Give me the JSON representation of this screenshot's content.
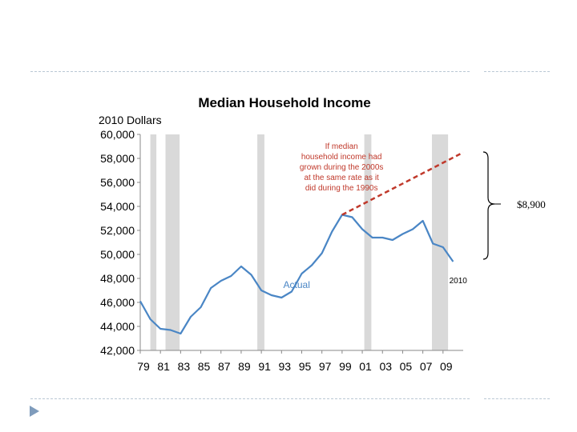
{
  "chart_data": {
    "type": "line",
    "title": "Median Household Income",
    "ylabel": "2010 Dollars",
    "xlabel": "",
    "ylim": [
      42000,
      60000
    ],
    "yticks": [
      42000,
      44000,
      46000,
      48000,
      50000,
      52000,
      54000,
      56000,
      58000,
      60000
    ],
    "ytick_labels": [
      "42,000",
      "44,000",
      "46,000",
      "48,000",
      "50,000",
      "52,000",
      "54,000",
      "56,000",
      "58,000",
      "60,000"
    ],
    "xlim": [
      1979,
      2011
    ],
    "xticks": [
      1979,
      1981,
      1983,
      1985,
      1987,
      1989,
      1991,
      1993,
      1995,
      1997,
      1999,
      2001,
      2003,
      2005,
      2007,
      2009
    ],
    "xtick_labels": [
      "79",
      "81",
      "83",
      "85",
      "87",
      "89",
      "91",
      "93",
      "95",
      "97",
      "99",
      "01",
      "03",
      "05",
      "07",
      "09"
    ],
    "grid": false,
    "series": [
      {
        "name": "Actual",
        "color": "#4a86c5",
        "style": "solid",
        "x": [
          1979,
          1980,
          1981,
          1982,
          1983,
          1984,
          1985,
          1986,
          1987,
          1988,
          1989,
          1990,
          1991,
          1992,
          1993,
          1994,
          1995,
          1996,
          1997,
          1998,
          1999,
          2000,
          2001,
          2002,
          2003,
          2004,
          2005,
          2006,
          2007,
          2008,
          2009,
          2010
        ],
        "y": [
          46100,
          44600,
          43800,
          43700,
          43400,
          44800,
          45600,
          47200,
          47800,
          48200,
          49000,
          48300,
          47000,
          46600,
          46400,
          46900,
          48400,
          49100,
          50100,
          51900,
          53300,
          53100,
          52100,
          51400,
          51400,
          51200,
          51700,
          52100,
          52800,
          50900,
          50600,
          49400
        ]
      },
      {
        "name": "",
        "color": "#c0392b",
        "style": "dashed",
        "x": [
          1999,
          2011
        ],
        "y": [
          53300,
          58500
        ]
      }
    ],
    "recession_bands": [
      [
        1980.0,
        1980.6
      ],
      [
        1981.5,
        1982.9
      ],
      [
        1990.6,
        1991.3
      ],
      [
        2001.2,
        2001.9
      ],
      [
        2007.9,
        2009.5
      ]
    ],
    "annotations": [
      {
        "text": "If median\nhousehold income had\ngrown during the 2000s\nat the same rate as it\ndid during the 1990s",
        "color": "#c0392b",
        "x": 2004.5,
        "y": 58800
      },
      {
        "text": "Actual",
        "color": "#4a86c5",
        "x": 1994.5,
        "y": 47200
      },
      {
        "text": "2010",
        "color": "#000000",
        "x": 2010.5,
        "y": 47600
      }
    ],
    "gap_label": "$8,900"
  }
}
